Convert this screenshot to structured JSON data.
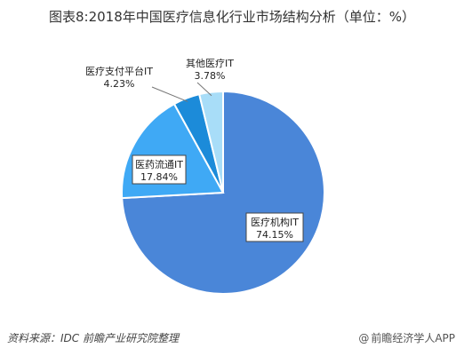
{
  "title": "图表8:2018年中国医疗信息化行业市场结构分析（单位：%）",
  "source": "资料来源：IDC 前瞻产业研究院整理",
  "brand": "前瞻经济学人APP",
  "colors": {
    "slice0": "#4A86D8",
    "slice1": "#3FA9F5",
    "slice2": "#1C8BD9",
    "slice3": "#A8DDF8"
  },
  "chart_data": {
    "type": "pie",
    "title": "图表8:2018年中国医疗信息化行业市场结构分析（单位：%）",
    "slices": [
      {
        "label": "医疗机构IT",
        "value": 74.15,
        "display": "74.15%"
      },
      {
        "label": "医药流通IT",
        "value": 17.84,
        "display": "17.84%"
      },
      {
        "label": "医疗支付平台IT",
        "value": 4.23,
        "display": "4.23%"
      },
      {
        "label": "其他医疗IT",
        "value": 3.78,
        "display": "3.78%"
      }
    ]
  }
}
